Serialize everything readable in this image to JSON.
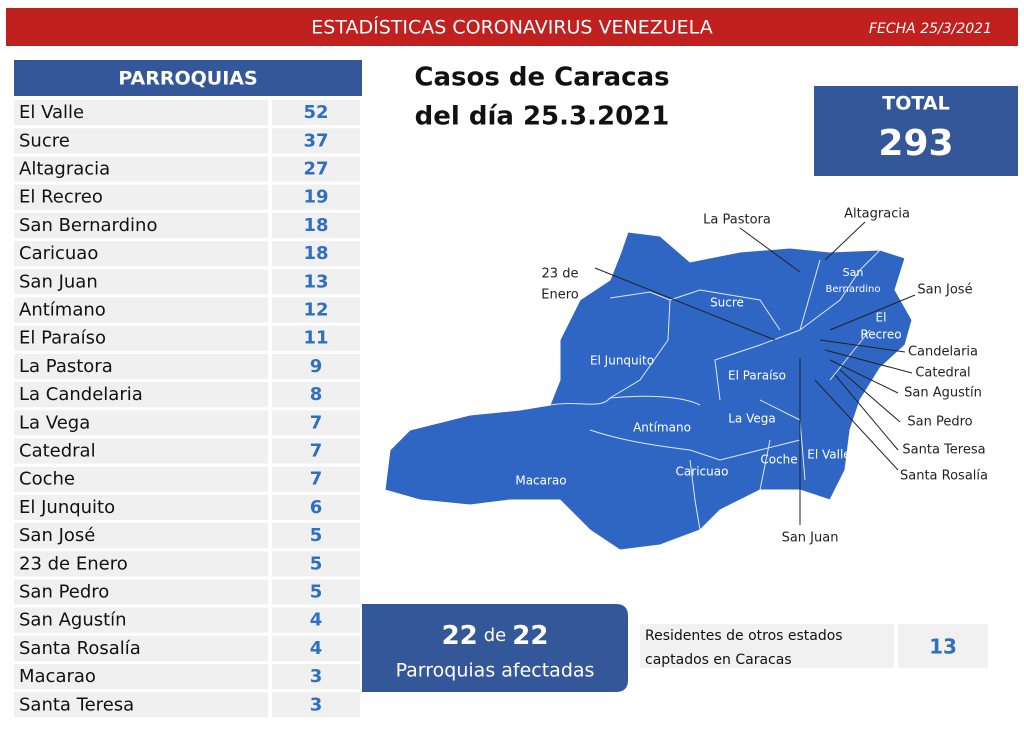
{
  "header": {
    "title": "ESTADÍSTICAS CORONAVIRUS VENEZUELA",
    "date": "FECHA 25/3/2021"
  },
  "table": {
    "header": "PARROQUIAS",
    "rows": [
      [
        "El Valle",
        "52"
      ],
      [
        "Sucre",
        "37"
      ],
      [
        "Altagracia",
        "27"
      ],
      [
        "El Recreo",
        "19"
      ],
      [
        "San Bernardino",
        "18"
      ],
      [
        "Caricuao",
        "18"
      ],
      [
        "San Juan",
        "13"
      ],
      [
        "Antímano",
        "12"
      ],
      [
        "El Paraíso",
        "11"
      ],
      [
        "La Pastora",
        "9"
      ],
      [
        "La Candelaria",
        "8"
      ],
      [
        "La Vega",
        "7"
      ],
      [
        "Catedral",
        "7"
      ],
      [
        "Coche",
        "7"
      ],
      [
        "El Junquito",
        "6"
      ],
      [
        "San José",
        "5"
      ],
      [
        "23 de Enero",
        "5"
      ],
      [
        "San Pedro",
        "5"
      ],
      [
        "San Agustín",
        "4"
      ],
      [
        "Santa Rosalía",
        "4"
      ],
      [
        "Macarao",
        "3"
      ],
      [
        "Santa Teresa",
        "3"
      ]
    ]
  },
  "caption": [
    "Casos de Caracas",
    "del día 25.3.2021"
  ],
  "total": {
    "label": "TOTAL",
    "value": "293"
  },
  "affected": {
    "count": "22",
    "connector": "de",
    "total": "22",
    "label": "Parroquias afectadas"
  },
  "residents": {
    "label": [
      "Residentes de otros estados",
      "captados en Caracas"
    ],
    "value": "13"
  },
  "map": {
    "inner": [
      "Sucre",
      "El Junquito",
      "El Paraíso",
      "La Vega",
      "Antímano",
      "Caricuao",
      "Coche",
      "El Valle",
      "Macarao"
    ],
    "inner_multi": [
      [
        "San",
        "Bernardino"
      ],
      [
        "El",
        "Recreo"
      ]
    ],
    "outer": [
      "La Pastora",
      "Altagracia",
      "San José",
      "Candelaria",
      "Catedral",
      "San Agustín",
      "San Pedro",
      "Santa Teresa",
      "Santa Rosalía",
      "San Juan"
    ],
    "outer_multi": [
      [
        "23 de",
        "Enero"
      ]
    ]
  }
}
